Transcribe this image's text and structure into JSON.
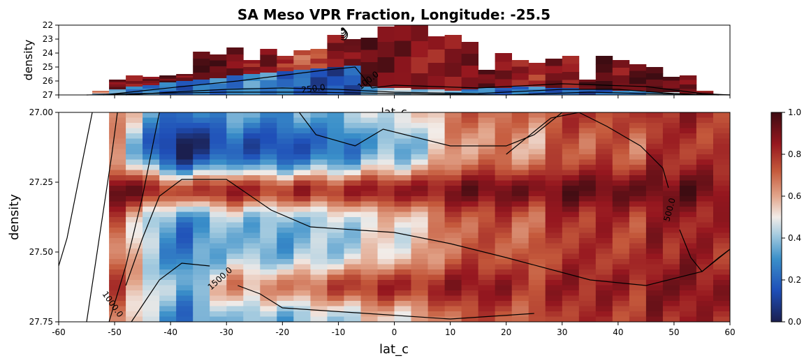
{
  "chart_data": {
    "title": "SA Meso VPR Fraction, Longitude: -25.5",
    "type": "heatmap",
    "colormap": "balance (dark blue → white → dark red)",
    "colors": {
      "low": "#1b1f4f",
      "mid": "#f2ece8",
      "high": "#3e0c12",
      "contour": "#000000"
    },
    "top_panel": {
      "xlabel": "lat_c",
      "ylabel": "density",
      "xlim": [
        -60,
        60
      ],
      "ylim": [
        27,
        22
      ],
      "yticks": [
        "22",
        "23",
        "24",
        "25",
        "26",
        "27"
      ],
      "contour_labels": [
        "250.0",
        "100.0"
      ]
    },
    "main_panel": {
      "xlabel": "lat_c",
      "ylabel": "density",
      "xlim": [
        -60,
        60
      ],
      "ylim": [
        27.75,
        27.0
      ],
      "xticks": [
        "-60",
        "-50",
        "-40",
        "-30",
        "-20",
        "-10",
        "0",
        "10",
        "20",
        "30",
        "40",
        "50",
        "60"
      ],
      "yticks": [
        "27.00",
        "27.25",
        "27.50",
        "27.75"
      ],
      "contour_labels": [
        "1000.0",
        "1500.0",
        "500.0"
      ]
    },
    "colorbar": {
      "range": [
        0,
        1
      ],
      "ticks": [
        "0.0",
        "0.2",
        "0.4",
        "0.6",
        "0.8",
        "1.0"
      ]
    },
    "lat_columns": [
      -58.5,
      -55.5,
      -52.5,
      -49.5,
      -46.5,
      -43.5,
      -40.5,
      -37.5,
      -34.5,
      -31.5,
      -28.5,
      -25.5,
      -22.5,
      -19.5,
      -16.5,
      -13.5,
      -10.5,
      -7.5,
      -4.5,
      -1.5,
      1.5,
      4.5,
      7.5,
      10.5,
      13.5,
      16.5,
      19.5,
      22.5,
      25.5,
      28.5,
      31.5,
      34.5,
      37.5,
      40.5,
      43.5,
      46.5,
      49.5,
      52.5,
      55.5,
      58.5
    ],
    "top_columns": {
      "top_density": [
        27,
        27,
        26.7,
        25.9,
        25.6,
        25.7,
        25.6,
        25.5,
        23.9,
        24.1,
        23.6,
        24.5,
        23.7,
        24.2,
        23.8,
        23.7,
        22.7,
        23.0,
        22.9,
        22.1,
        22.0,
        22.0,
        22.8,
        22.7,
        23.2,
        25.2,
        24.0,
        24.5,
        24.7,
        24.4,
        24.2,
        25.9,
        24.2,
        24.5,
        24.8,
        25.0,
        25.7,
        25.6,
        26.7,
        27.0
      ],
      "fraction_above_boundary": [
        0.6,
        0.6,
        0.65,
        0.9,
        0.85,
        0.9,
        0.95,
        0.9,
        0.98,
        0.95,
        0.9,
        0.85,
        0.92,
        0.8,
        0.7,
        0.75,
        0.88,
        0.9,
        0.95,
        0.92,
        0.9,
        0.85,
        0.85,
        0.88,
        0.9,
        0.92,
        0.88,
        0.85,
        0.8,
        0.9,
        0.85,
        0.95,
        0.98,
        0.88,
        0.96,
        0.97,
        0.92,
        0.9,
        0.86,
        0.94
      ],
      "boundary_density": [
        27,
        27,
        26.9,
        26.6,
        26.4,
        26.3,
        26.1,
        26.0,
        25.9,
        25.8,
        25.6,
        25.5,
        25.4,
        25.3,
        25.2,
        25.1,
        25.0,
        24.9,
        26.4,
        26.5,
        26.5,
        26.6,
        26.6,
        26.7,
        26.6,
        26.5,
        26.5,
        26.4,
        26.4,
        26.5,
        26.5,
        26.6,
        26.6,
        26.7,
        26.7,
        26.8,
        26.8,
        26.9,
        27,
        27
      ],
      "fraction_below_boundary": [
        0.5,
        0.5,
        0.4,
        0.3,
        0.28,
        0.25,
        0.22,
        0.2,
        0.22,
        0.25,
        0.25,
        0.28,
        0.3,
        0.22,
        0.18,
        0.15,
        0.12,
        0.15,
        0.35,
        0.4,
        0.45,
        0.42,
        0.38,
        0.35,
        0.3,
        0.25,
        0.2,
        0.22,
        0.25,
        0.2,
        0.18,
        0.15,
        0.2,
        0.25,
        0.3,
        0.35,
        0.4,
        0.5,
        0.6,
        0.7
      ]
    },
    "main_heatmap": {
      "density_start": [
        27.75,
        27.75,
        27.75,
        27.0,
        27.0,
        27.0,
        27.0,
        27.0,
        27.0,
        27.0,
        27.0,
        27.0,
        27.0,
        27.0,
        27.0,
        27.0,
        27.0,
        27.0,
        27.0,
        27.0,
        27.0,
        27.0,
        27.0,
        27.0,
        27.0,
        27.0,
        27.0,
        27.0,
        27.0,
        27.0,
        27.0,
        27.0,
        27.0,
        27.0,
        27.0,
        27.0,
        27.0,
        27.0,
        27.0,
        27.0
      ],
      "base": [
        0.25,
        0.4,
        0.5,
        0.7,
        0.55,
        0.4,
        0.3,
        0.22,
        0.3,
        0.35,
        0.4,
        0.35,
        0.35,
        0.33,
        0.38,
        0.4,
        0.4,
        0.42,
        0.5,
        0.52,
        0.5,
        0.55,
        0.62,
        0.7,
        0.72,
        0.72,
        0.74,
        0.7,
        0.68,
        0.78,
        0.8,
        0.78,
        0.8,
        0.78,
        0.75,
        0.85,
        0.82,
        0.85,
        0.82,
        0.8
      ],
      "band": [
        0,
        0.15,
        0.2,
        0.25,
        0.35,
        0.45,
        0.5,
        0.5,
        0.5,
        0.5,
        0.45,
        0.45,
        0.45,
        0.45,
        0.45,
        0.4,
        0.4,
        0.4,
        0.35,
        0.35,
        0.35,
        0.3,
        0.25,
        0.2,
        0.2,
        0.2,
        0.2,
        0.2,
        0.2,
        0.15,
        0.15,
        0.15,
        0.15,
        0.15,
        0.15,
        0.1,
        0.1,
        0.1,
        0.1,
        0.1
      ],
      "bottom_trend": [
        0,
        0,
        0.05,
        0.05,
        0.05,
        0.1,
        0.1,
        0.1,
        0.15,
        0.2,
        0.25,
        0.25,
        0.3,
        0.3,
        0.3,
        0.3,
        0.35,
        0.35,
        0.3,
        0.3,
        0.3,
        0.25,
        0.2,
        0.15,
        0.15,
        0.15,
        0.1,
        0.1,
        0.1,
        0.05,
        0.05,
        0.05,
        0.05,
        0.05,
        0.05,
        0.05,
        0.05,
        0.05,
        0.05,
        0.05
      ]
    }
  }
}
